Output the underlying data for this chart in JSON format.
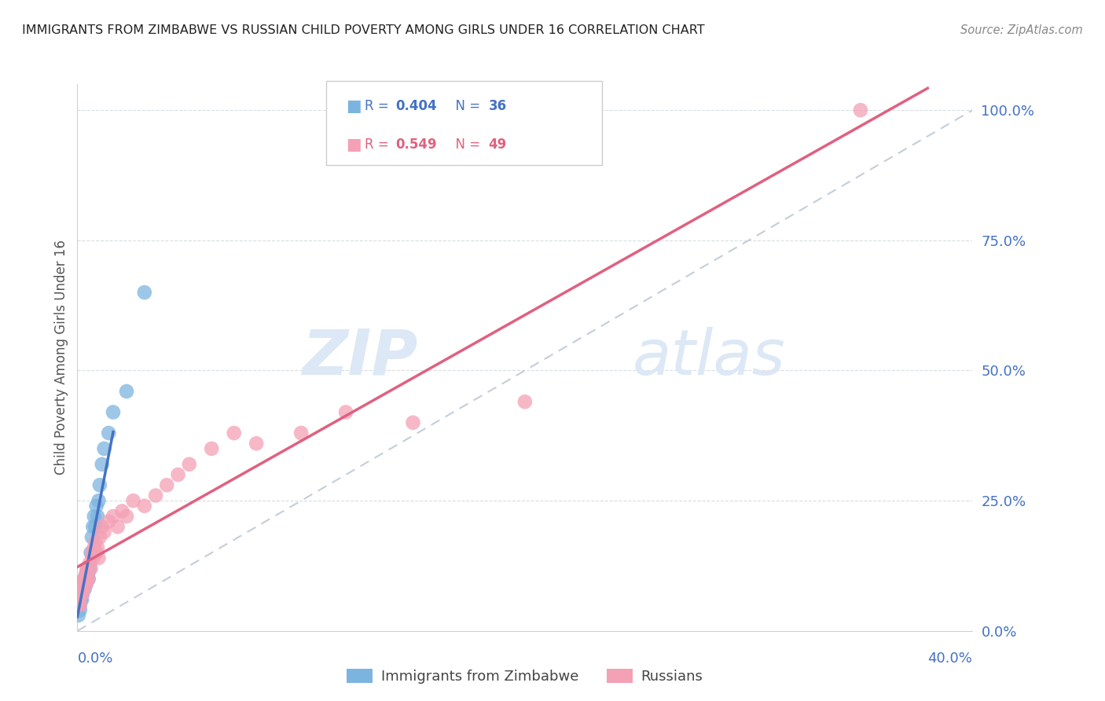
{
  "title": "IMMIGRANTS FROM ZIMBABWE VS RUSSIAN CHILD POVERTY AMONG GIRLS UNDER 16 CORRELATION CHART",
  "source": "Source: ZipAtlas.com",
  "ylabel": "Child Poverty Among Girls Under 16",
  "color_blue": "#7cb4e0",
  "color_pink": "#f4a0b5",
  "color_blue_line": "#4472c4",
  "color_pink_line": "#e06080",
  "color_trendline_dashed": "#c0c8d5",
  "color_blue_text": "#4472c4",
  "color_pink_text": "#e06080",
  "color_axis_text": "#4472c4",
  "watermark_color": "#dce8f5",
  "xlim": [
    0,
    40
  ],
  "ylim": [
    0,
    105
  ],
  "figsize": [
    14.06,
    8.92
  ],
  "dpi": 100,
  "blue_scatter_x": [
    0.05,
    0.08,
    0.1,
    0.12,
    0.15,
    0.18,
    0.2,
    0.2,
    0.22,
    0.25,
    0.28,
    0.3,
    0.32,
    0.35,
    0.38,
    0.4,
    0.42,
    0.45,
    0.48,
    0.5,
    0.55,
    0.6,
    0.65,
    0.7,
    0.75,
    0.8,
    0.85,
    0.9,
    0.95,
    1.0,
    1.1,
    1.2,
    1.4,
    1.6,
    2.2,
    3.0
  ],
  "blue_scatter_y": [
    3,
    5,
    5,
    4,
    6,
    7,
    6,
    8,
    7,
    8,
    9,
    10,
    8,
    10,
    9,
    10,
    11,
    12,
    11,
    10,
    12,
    15,
    18,
    20,
    22,
    20,
    24,
    22,
    25,
    28,
    32,
    35,
    38,
    42,
    46,
    65
  ],
  "pink_scatter_x": [
    0.05,
    0.08,
    0.1,
    0.12,
    0.15,
    0.18,
    0.2,
    0.22,
    0.25,
    0.28,
    0.3,
    0.32,
    0.35,
    0.38,
    0.4,
    0.42,
    0.45,
    0.5,
    0.55,
    0.6,
    0.65,
    0.7,
    0.75,
    0.8,
    0.85,
    0.9,
    0.95,
    1.0,
    1.1,
    1.2,
    1.4,
    1.6,
    1.8,
    2.0,
    2.2,
    2.5,
    3.0,
    3.5,
    4.0,
    4.5,
    5.0,
    6.0,
    7.0,
    8.0,
    10.0,
    12.0,
    15.0,
    20.0,
    35.0
  ],
  "pink_scatter_y": [
    5,
    6,
    7,
    5,
    8,
    7,
    8,
    7,
    9,
    8,
    10,
    9,
    10,
    11,
    9,
    12,
    11,
    10,
    13,
    12,
    15,
    14,
    16,
    17,
    15,
    16,
    14,
    18,
    20,
    19,
    21,
    22,
    20,
    23,
    22,
    25,
    24,
    26,
    28,
    30,
    32,
    35,
    38,
    36,
    38,
    42,
    40,
    44,
    100
  ]
}
